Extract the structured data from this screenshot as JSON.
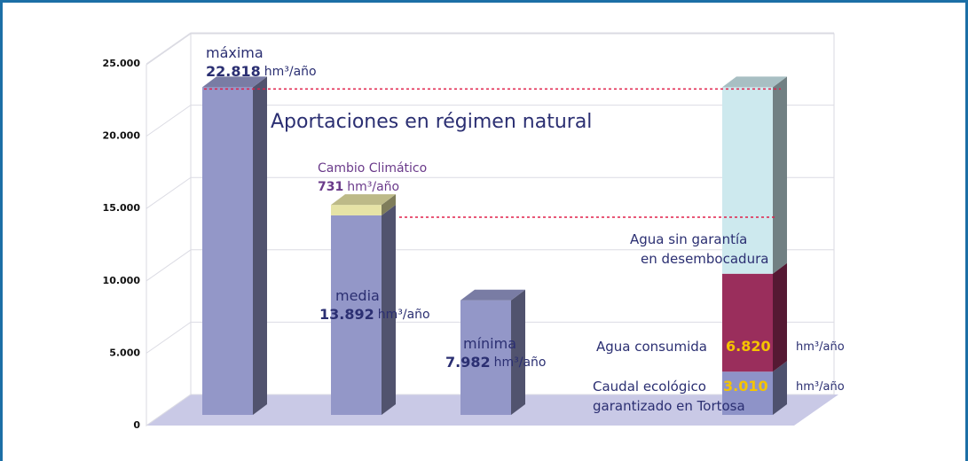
{
  "chart_data": {
    "type": "bar3d",
    "annotation": "Aportaciones en régimen natural",
    "unit": "hm³/año",
    "ylim": [
      0,
      25000
    ],
    "yticks": [
      {
        "value": 0,
        "label": "0"
      },
      {
        "value": 5000,
        "label": "5.000"
      },
      {
        "value": 10000,
        "label": "10.000"
      },
      {
        "value": 15000,
        "label": "15.000"
      },
      {
        "value": 20000,
        "label": "20.000"
      },
      {
        "value": 25000,
        "label": "25.000"
      }
    ],
    "grid": true,
    "bars": [
      {
        "label": "máxima",
        "segments": [
          {
            "value": 22818,
            "value_label": "22.818",
            "color": "#9397c8"
          }
        ]
      },
      {
        "label": "media",
        "segments": [
          {
            "value": 13892,
            "value_label": "13.892",
            "color": "#9397c8"
          },
          {
            "name": "Cambio Climático",
            "value": 731,
            "value_label": "731",
            "color": "#e6e3a6"
          }
        ]
      },
      {
        "label": "mínima",
        "segments": [
          {
            "value": 7982,
            "value_label": "7.982",
            "color": "#9397c8"
          }
        ]
      },
      {
        "segments": [
          {
            "name": [
              "Caudal ecológico",
              "garantizado en Tortosa"
            ],
            "value": 3010,
            "value_label": "3.010",
            "color": "#8e93c8"
          },
          {
            "name": [
              "Agua consumida"
            ],
            "value": 6820,
            "value_label": "6.820",
            "color": "#9a2e5c"
          },
          {
            "name": [
              "Agua sin garantía",
              "en desembocadura"
            ],
            "value": 12988,
            "color": "#cde9ee"
          }
        ]
      }
    ]
  }
}
